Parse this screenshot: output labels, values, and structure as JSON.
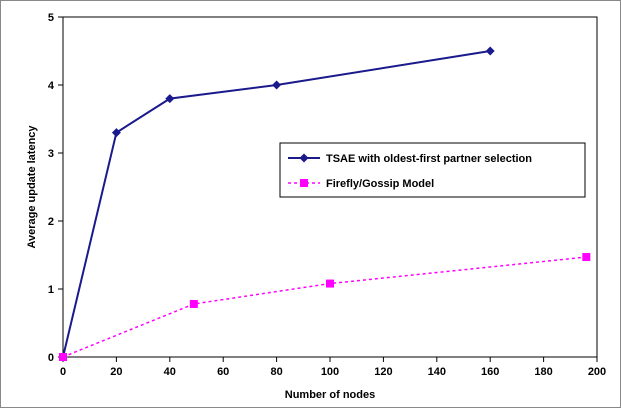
{
  "chart_data": {
    "type": "line",
    "title": "",
    "xlabel": "Number of nodes",
    "ylabel": "Average update latency",
    "xlim": [
      0,
      200
    ],
    "ylim": [
      0,
      5
    ],
    "xticks": [
      0,
      20,
      40,
      60,
      80,
      100,
      120,
      140,
      160,
      180,
      200
    ],
    "yticks": [
      0,
      1,
      2,
      3,
      4,
      5
    ],
    "grid": false,
    "legend_position": "center-right",
    "series": [
      {
        "name": "TSAE with oldest-first partner selection",
        "color": "#1a1a8c",
        "marker": "diamond",
        "line_style": "solid",
        "x": [
          0,
          20,
          40,
          80,
          160
        ],
        "y": [
          0,
          3.3,
          3.8,
          4.0,
          4.5
        ]
      },
      {
        "name": "Firefly/Gossip Model",
        "color": "#ff00ff",
        "marker": "square",
        "line_style": "dashed",
        "x": [
          0,
          49,
          100,
          196
        ],
        "y": [
          0,
          0.78,
          1.08,
          1.47
        ]
      }
    ]
  }
}
